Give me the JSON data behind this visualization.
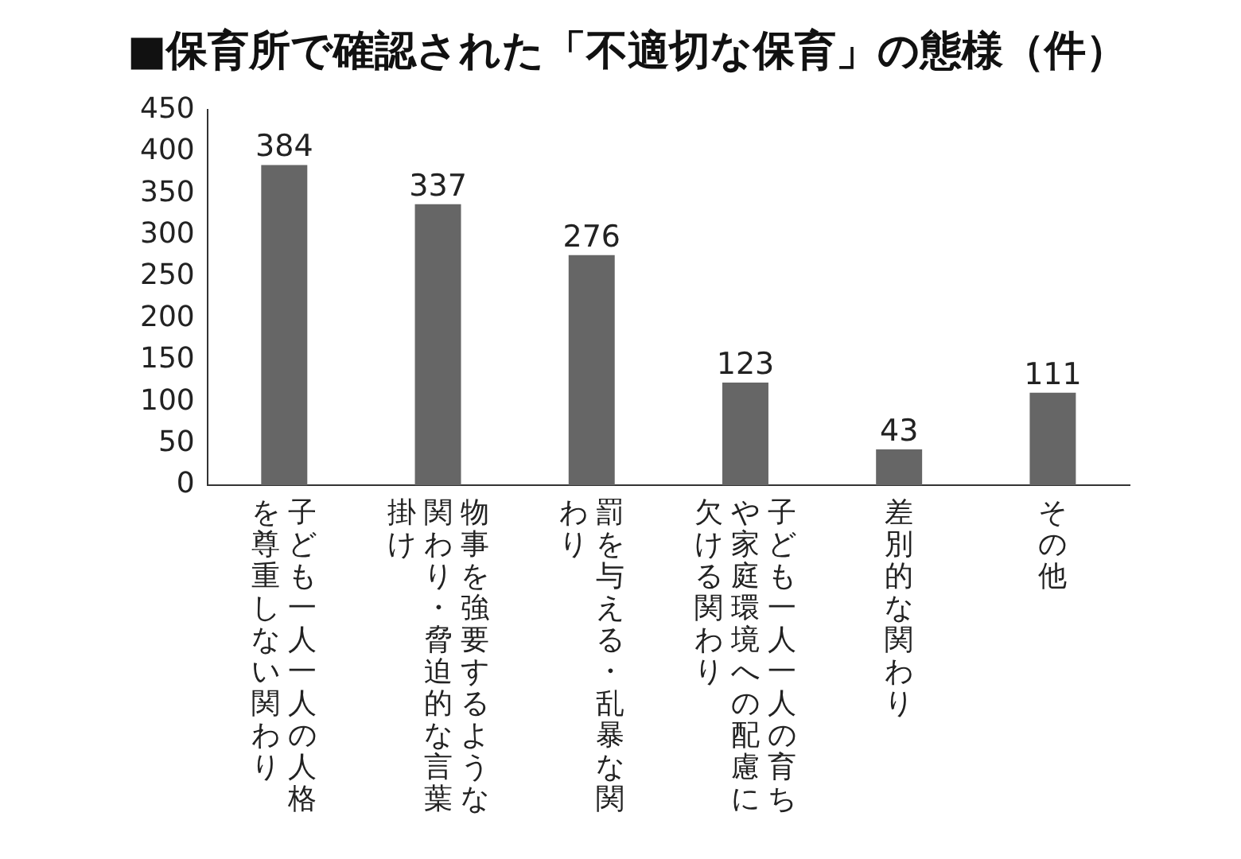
{
  "chart_data": {
    "type": "bar",
    "title": "■保育所で確認された「不適切な保育」の態様（件）",
    "categories": [
      "子ども一人一人の人格を尊重しない関わり",
      "物事を強要するような関わり・脅迫的な言葉掛け",
      "罰を与える・乱暴な関わり",
      "子ども一人一人の育ちや家庭環境への配慮に欠ける関わり",
      "差別的な関わり",
      "その他"
    ],
    "values": [
      384,
      337,
      276,
      123,
      43,
      111
    ],
    "color": "#666666",
    "ylim": [
      0,
      450
    ],
    "yticks": [
      0,
      50,
      100,
      150,
      200,
      250,
      300,
      350,
      400,
      450
    ],
    "grid": false,
    "legend": false,
    "data_labels": true
  }
}
